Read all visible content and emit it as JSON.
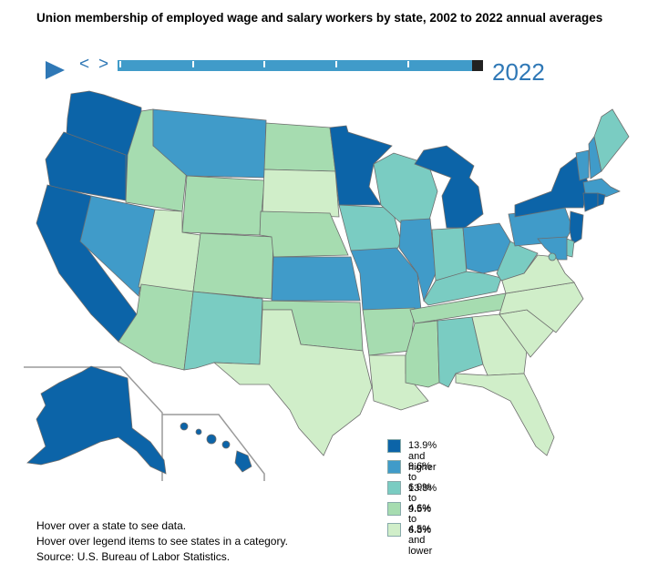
{
  "title": "Union membership of employed wage and salary workers by state, 2002 to 2022 annual averages",
  "controls": {
    "play_icon": "play-triangle-icon",
    "prev_label": "<",
    "next_label": ">",
    "year": "2022",
    "timeline_start": 2002,
    "timeline_end": 2022
  },
  "legend": [
    {
      "label": "13.9% and higher",
      "color": "#0c64a8"
    },
    {
      "label": "9.6% to 13.8%",
      "color": "#409bc9"
    },
    {
      "label": "6.9% to 9.5%",
      "color": "#7accc2"
    },
    {
      "label": "4.6% to 6.8%",
      "color": "#a6dcb0"
    },
    {
      "label": "4.5% and lower",
      "color": "#d0eec9"
    }
  ],
  "states": {
    "WA": 0,
    "OR": 0,
    "CA": 0,
    "NV": 1,
    "ID": 3,
    "MT": 1,
    "WY": 3,
    "UT": 4,
    "AZ": 3,
    "CO": 3,
    "NM": 2,
    "ND": 3,
    "SD": 4,
    "NE": 3,
    "KS": 1,
    "OK": 3,
    "TX": 4,
    "MN": 0,
    "IA": 2,
    "MO": 1,
    "AR": 3,
    "LA": 4,
    "WI": 2,
    "IL": 1,
    "MI": 0,
    "IN": 2,
    "OH": 1,
    "KY": 2,
    "TN": 3,
    "MS": 3,
    "AL": 2,
    "GA": 4,
    "FL": 4,
    "SC": 4,
    "NC": 4,
    "VA": 4,
    "WV": 2,
    "PA": 1,
    "NY": 0,
    "VT": 1,
    "NH": 1,
    "ME": 2,
    "MA": 1,
    "RI": 0,
    "CT": 0,
    "NJ": 0,
    "DE": 2,
    "MD": 1,
    "DC": 2,
    "AK": 0,
    "HI": 0
  },
  "notes": [
    "Hover over a state to see data.",
    "Hover over legend items to see states in a category.",
    "Source: U.S. Bureau of Labor Statistics."
  ]
}
